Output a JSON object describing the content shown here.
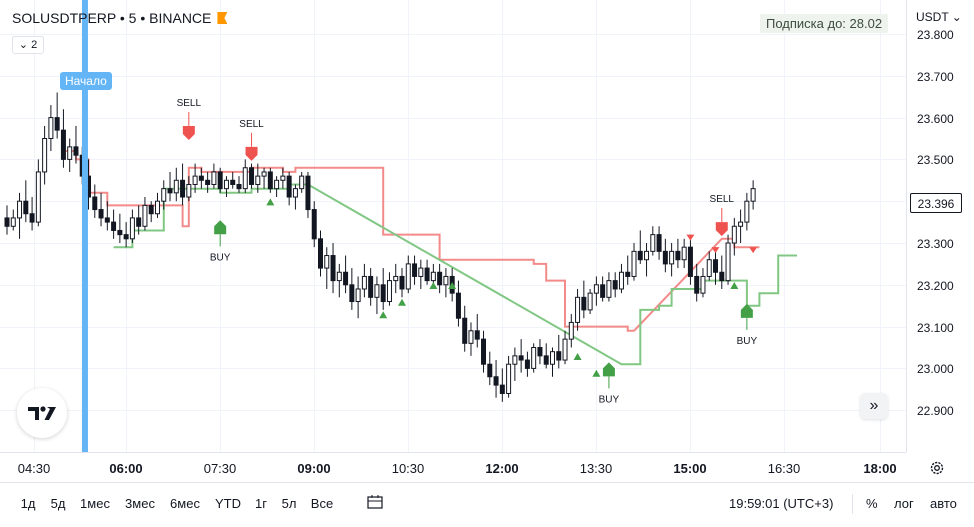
{
  "legend": {
    "title": "SOLUSDTPERP • 5 • BINANCE",
    "collapse_label": "2"
  },
  "subscription_badge": "Подписка до: 28.02",
  "start_marker_label": "Начало",
  "currency": "USDT",
  "current_price": "23.396",
  "price_ticks": [
    "23.800",
    "23.700",
    "23.600",
    "23.500",
    "23.400",
    "23.300",
    "23.200",
    "23.100",
    "23.000",
    "22.900"
  ],
  "time_ticks": [
    "04:30",
    "06:00",
    "07:30",
    "09:00",
    "10:30",
    "12:00",
    "13:30",
    "15:00",
    "16:30",
    "18:00"
  ],
  "time_ticks_bold": [
    false,
    true,
    false,
    true,
    false,
    true,
    false,
    true,
    false,
    true
  ],
  "range_buttons": [
    "1д",
    "5д",
    "1мес",
    "3мес",
    "6мес",
    "YTD",
    "1г",
    "5л",
    "Все"
  ],
  "clock": "19:59:01 (UTC+3)",
  "percent_label": "%",
  "log_label": "лог",
  "auto_label": "авто",
  "colors": {
    "up": "#131722",
    "down": "#131722",
    "sell": "#ef5350",
    "buy": "#43a047",
    "red_line": "#f28b89",
    "green_line": "#81c784",
    "start_line": "#64b5f6"
  },
  "chart_data": {
    "type": "candlestick",
    "symbol": "SOLUSDTPERP",
    "interval_minutes": 5,
    "ylim": [
      22.86,
      23.82
    ],
    "x_first_bar": "04:20",
    "candles": [
      [
        23.36,
        23.39,
        23.32,
        23.34
      ],
      [
        23.34,
        23.38,
        23.33,
        23.36
      ],
      [
        23.36,
        23.42,
        23.31,
        23.4
      ],
      [
        23.4,
        23.45,
        23.35,
        23.37
      ],
      [
        23.37,
        23.41,
        23.33,
        23.35
      ],
      [
        23.35,
        23.5,
        23.34,
        23.47
      ],
      [
        23.47,
        23.58,
        23.44,
        23.55
      ],
      [
        23.55,
        23.63,
        23.52,
        23.6
      ],
      [
        23.6,
        23.66,
        23.55,
        23.57
      ],
      [
        23.57,
        23.62,
        23.48,
        23.5
      ],
      [
        23.5,
        23.55,
        23.47,
        23.53
      ],
      [
        23.53,
        23.58,
        23.49,
        23.51
      ],
      [
        23.51,
        23.53,
        23.44,
        23.46
      ],
      [
        23.46,
        23.5,
        23.38,
        23.41
      ],
      [
        23.41,
        23.44,
        23.36,
        23.38
      ],
      [
        23.38,
        23.42,
        23.34,
        23.36
      ],
      [
        23.36,
        23.4,
        23.33,
        23.35
      ],
      [
        23.35,
        23.38,
        23.31,
        23.33
      ],
      [
        23.33,
        23.37,
        23.3,
        23.32
      ],
      [
        23.32,
        23.35,
        23.29,
        23.31
      ],
      [
        23.31,
        23.38,
        23.3,
        23.36
      ],
      [
        23.36,
        23.39,
        23.32,
        23.34
      ],
      [
        23.34,
        23.41,
        23.33,
        23.39
      ],
      [
        23.39,
        23.4,
        23.35,
        23.37
      ],
      [
        23.37,
        23.42,
        23.36,
        23.4
      ],
      [
        23.4,
        23.45,
        23.38,
        23.43
      ],
      [
        23.43,
        23.47,
        23.4,
        23.42
      ],
      [
        23.42,
        23.48,
        23.4,
        23.45
      ],
      [
        23.45,
        23.49,
        23.39,
        23.41
      ],
      [
        23.41,
        23.46,
        23.4,
        23.44
      ],
      [
        23.44,
        23.49,
        23.42,
        23.46
      ],
      [
        23.46,
        23.48,
        23.43,
        23.45
      ],
      [
        23.45,
        23.47,
        23.42,
        23.44
      ],
      [
        23.44,
        23.49,
        23.43,
        23.47
      ],
      [
        23.47,
        23.48,
        23.42,
        23.43
      ],
      [
        23.43,
        23.46,
        23.41,
        23.45
      ],
      [
        23.45,
        23.47,
        23.43,
        23.44
      ],
      [
        23.44,
        23.46,
        23.42,
        23.43
      ],
      [
        23.43,
        23.5,
        23.42,
        23.48
      ],
      [
        23.48,
        23.49,
        23.43,
        23.44
      ],
      [
        23.44,
        23.49,
        23.42,
        23.46
      ],
      [
        23.46,
        23.48,
        23.43,
        23.47
      ],
      [
        23.47,
        23.48,
        23.42,
        23.43
      ],
      [
        23.43,
        23.46,
        23.41,
        23.45
      ],
      [
        23.45,
        23.48,
        23.43,
        23.46
      ],
      [
        23.46,
        23.47,
        23.39,
        23.41
      ],
      [
        23.41,
        23.44,
        23.38,
        23.43
      ],
      [
        23.43,
        23.47,
        23.42,
        23.46
      ],
      [
        23.46,
        23.47,
        23.36,
        23.38
      ],
      [
        23.38,
        23.4,
        23.29,
        23.31
      ],
      [
        23.31,
        23.33,
        23.22,
        23.24
      ],
      [
        23.24,
        23.29,
        23.19,
        23.27
      ],
      [
        23.27,
        23.3,
        23.18,
        23.21
      ],
      [
        23.21,
        23.25,
        23.17,
        23.23
      ],
      [
        23.23,
        23.27,
        23.18,
        23.2
      ],
      [
        23.2,
        23.24,
        23.14,
        23.16
      ],
      [
        23.16,
        23.22,
        23.12,
        23.19
      ],
      [
        23.19,
        23.25,
        23.17,
        23.22
      ],
      [
        23.22,
        23.24,
        23.15,
        23.17
      ],
      [
        23.17,
        23.22,
        23.13,
        23.2
      ],
      [
        23.2,
        23.24,
        23.14,
        23.16
      ],
      [
        23.16,
        23.23,
        23.15,
        23.21
      ],
      [
        23.21,
        23.25,
        23.18,
        23.22
      ],
      [
        23.22,
        23.24,
        23.17,
        23.19
      ],
      [
        23.19,
        23.27,
        23.18,
        23.25
      ],
      [
        23.25,
        23.27,
        23.2,
        23.22
      ],
      [
        23.22,
        23.26,
        23.19,
        23.24
      ],
      [
        23.24,
        23.26,
        23.2,
        23.21
      ],
      [
        23.21,
        23.25,
        23.19,
        23.23
      ],
      [
        23.23,
        23.25,
        23.18,
        23.2
      ],
      [
        23.2,
        23.24,
        23.17,
        23.22
      ],
      [
        23.22,
        23.24,
        23.16,
        23.18
      ],
      [
        23.18,
        23.21,
        23.1,
        23.12
      ],
      [
        23.12,
        23.15,
        23.04,
        23.06
      ],
      [
        23.06,
        23.11,
        23.03,
        23.09
      ],
      [
        23.09,
        23.13,
        23.05,
        23.07
      ],
      [
        23.07,
        23.09,
        22.99,
        23.01
      ],
      [
        23.01,
        23.04,
        22.96,
        22.98
      ],
      [
        22.98,
        23.02,
        22.93,
        22.96
      ],
      [
        22.96,
        23.0,
        22.92,
        22.94
      ],
      [
        22.94,
        23.03,
        22.93,
        23.01
      ],
      [
        23.01,
        23.05,
        22.97,
        23.03
      ],
      [
        23.03,
        23.07,
        22.99,
        23.02
      ],
      [
        23.02,
        23.04,
        22.98,
        23.0
      ],
      [
        23.0,
        23.06,
        22.99,
        23.05
      ],
      [
        23.05,
        23.07,
        23.01,
        23.03
      ],
      [
        23.03,
        23.06,
        23.0,
        23.01
      ],
      [
        23.01,
        23.05,
        22.98,
        23.04
      ],
      [
        23.04,
        23.08,
        23.0,
        23.02
      ],
      [
        23.02,
        23.09,
        23.01,
        23.07
      ],
      [
        23.07,
        23.13,
        23.05,
        23.11
      ],
      [
        23.11,
        23.19,
        23.09,
        23.17
      ],
      [
        23.17,
        23.21,
        23.12,
        23.14
      ],
      [
        23.14,
        23.19,
        23.13,
        23.18
      ],
      [
        23.18,
        23.22,
        23.15,
        23.2
      ],
      [
        23.2,
        23.22,
        23.16,
        23.17
      ],
      [
        23.17,
        23.23,
        23.16,
        23.21
      ],
      [
        23.21,
        23.23,
        23.17,
        23.19
      ],
      [
        23.19,
        23.25,
        23.18,
        23.23
      ],
      [
        23.23,
        23.27,
        23.2,
        23.22
      ],
      [
        23.22,
        23.3,
        23.21,
        23.28
      ],
      [
        23.28,
        23.33,
        23.25,
        23.26
      ],
      [
        23.26,
        23.3,
        23.22,
        23.28
      ],
      [
        23.28,
        23.34,
        23.27,
        23.32
      ],
      [
        23.32,
        23.34,
        23.26,
        23.28
      ],
      [
        23.28,
        23.31,
        23.23,
        23.25
      ],
      [
        23.25,
        23.3,
        23.22,
        23.28
      ],
      [
        23.28,
        23.31,
        23.24,
        23.26
      ],
      [
        23.26,
        23.31,
        23.24,
        23.29
      ],
      [
        23.29,
        23.32,
        23.2,
        23.22
      ],
      [
        23.22,
        23.25,
        23.16,
        23.18
      ],
      [
        23.18,
        23.24,
        23.17,
        23.22
      ],
      [
        23.22,
        23.28,
        23.21,
        23.26
      ],
      [
        23.26,
        23.29,
        23.2,
        23.23
      ],
      [
        23.23,
        23.27,
        23.19,
        23.21
      ],
      [
        23.21,
        23.32,
        23.2,
        23.3
      ],
      [
        23.3,
        23.36,
        23.27,
        23.34
      ],
      [
        23.34,
        23.38,
        23.3,
        23.35
      ],
      [
        23.35,
        23.42,
        23.33,
        23.4
      ],
      [
        23.4,
        23.45,
        23.38,
        23.43
      ]
    ],
    "red_line": [
      [
        9,
        23.52
      ],
      [
        11,
        23.52
      ],
      [
        11,
        23.5
      ],
      [
        13,
        23.5
      ],
      [
        13,
        23.42
      ],
      [
        16,
        23.42
      ],
      [
        16,
        23.39
      ],
      [
        28,
        23.39
      ],
      [
        28,
        23.34
      ],
      [
        29,
        23.34
      ],
      [
        29,
        23.48
      ],
      [
        31,
        23.48
      ],
      [
        31,
        23.47
      ],
      [
        39,
        23.47
      ],
      [
        39,
        23.48
      ],
      [
        44,
        23.48
      ],
      [
        44,
        23.47
      ],
      [
        46,
        23.47
      ],
      [
        46,
        23.48
      ],
      [
        60,
        23.48
      ],
      [
        60,
        23.32
      ],
      [
        69,
        23.32
      ],
      [
        69,
        23.26
      ],
      [
        84,
        23.26
      ],
      [
        84,
        23.25
      ],
      [
        86,
        23.25
      ],
      [
        86,
        23.21
      ],
      [
        89,
        23.21
      ],
      [
        89,
        23.1
      ],
      [
        99,
        23.1
      ],
      [
        99,
        23.09
      ],
      [
        100,
        23.09
      ],
      [
        114,
        23.31
      ],
      [
        116,
        23.31
      ],
      [
        116,
        23.29
      ],
      [
        120,
        23.29
      ]
    ],
    "green_line": [
      [
        17,
        23.29
      ],
      [
        20,
        23.29
      ],
      [
        20,
        23.33
      ],
      [
        25,
        23.33
      ],
      [
        25,
        23.43
      ],
      [
        34,
        23.43
      ],
      [
        34,
        23.42
      ],
      [
        39,
        23.42
      ],
      [
        39,
        23.43
      ],
      [
        45,
        23.43
      ],
      [
        45,
        23.44
      ],
      [
        48,
        23.44
      ],
      [
        98,
        23.01
      ],
      [
        101,
        23.01
      ],
      [
        101,
        23.14
      ],
      [
        104,
        23.14
      ],
      [
        104,
        23.15
      ],
      [
        106,
        23.15
      ],
      [
        106,
        23.19
      ],
      [
        111,
        23.19
      ],
      [
        111,
        23.21
      ],
      [
        118,
        23.21
      ],
      [
        118,
        23.15
      ],
      [
        120,
        23.15
      ],
      [
        120,
        23.18
      ],
      [
        123,
        23.18
      ],
      [
        123,
        23.27
      ],
      [
        126,
        23.27
      ]
    ],
    "signals": [
      {
        "type": "sell",
        "bar": 29,
        "price": 23.58,
        "label": "SELL",
        "size": "big"
      },
      {
        "type": "sell",
        "bar": 39,
        "price": 23.53,
        "label": "SELL",
        "size": "big"
      },
      {
        "type": "buy",
        "bar": 34,
        "price": 23.34,
        "label": "BUY",
        "size": "big"
      },
      {
        "type": "buy",
        "bar": 42,
        "price": 23.39,
        "label": "",
        "size": "small"
      },
      {
        "type": "buy",
        "bar": 60,
        "price": 23.12,
        "label": "",
        "size": "small"
      },
      {
        "type": "buy",
        "bar": 63,
        "price": 23.15,
        "label": "",
        "size": "small"
      },
      {
        "type": "buy",
        "bar": 68,
        "price": 23.19,
        "label": "",
        "size": "small"
      },
      {
        "type": "buy",
        "bar": 71,
        "price": 23.19,
        "label": "",
        "size": "small"
      },
      {
        "type": "buy",
        "bar": 91,
        "price": 23.02,
        "label": "",
        "size": "small"
      },
      {
        "type": "buy",
        "bar": 94,
        "price": 22.98,
        "label": "",
        "size": "small"
      },
      {
        "type": "buy",
        "bar": 96,
        "price": 23.0,
        "label": "BUY",
        "size": "big"
      },
      {
        "type": "sell",
        "bar": 109,
        "price": 23.32,
        "label": "",
        "size": "small"
      },
      {
        "type": "sell",
        "bar": 113,
        "price": 23.29,
        "label": "",
        "size": "small"
      },
      {
        "type": "sell",
        "bar": 114,
        "price": 23.35,
        "label": "SELL",
        "size": "big"
      },
      {
        "type": "buy",
        "bar": 116,
        "price": 23.19,
        "label": "",
        "size": "small"
      },
      {
        "type": "sell",
        "bar": 119,
        "price": 23.29,
        "label": "",
        "size": "small"
      },
      {
        "type": "buy",
        "bar": 118,
        "price": 23.14,
        "label": "BUY",
        "size": "big"
      }
    ],
    "start_marker_bar": 11
  }
}
